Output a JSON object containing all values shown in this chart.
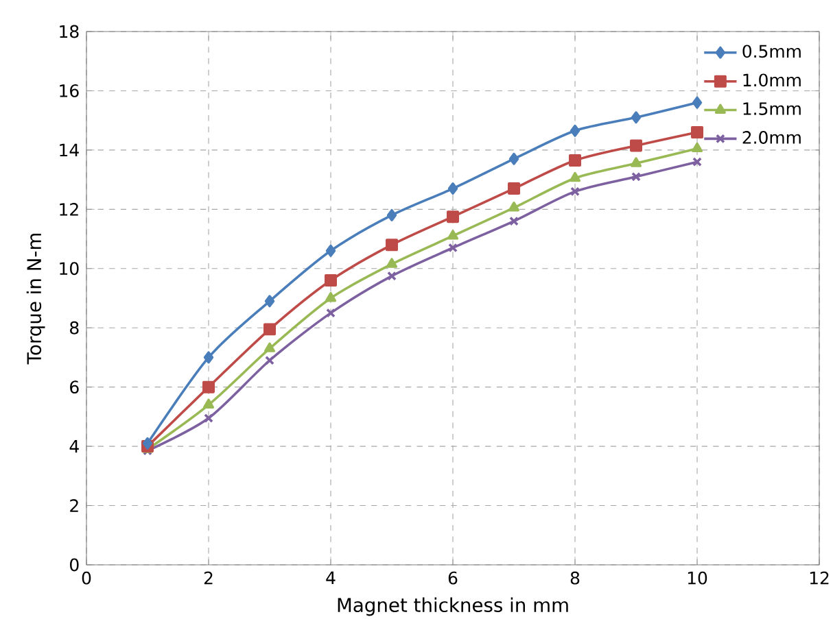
{
  "chart_data": {
    "type": "line",
    "xlabel": "Magnet thickness in mm",
    "ylabel": "Torque in N-m",
    "x": [
      1,
      2,
      3,
      4,
      5,
      6,
      7,
      8,
      9,
      10
    ],
    "xlim": [
      0,
      12
    ],
    "xticks": [
      0,
      2,
      4,
      6,
      8,
      10,
      12
    ],
    "ylim": [
      0,
      18
    ],
    "yticks": [
      0,
      2,
      4,
      6,
      8,
      10,
      12,
      14,
      16,
      18
    ],
    "grid": true,
    "legend": "top right",
    "line_style": "solid",
    "series": [
      {
        "name": "0.5mm",
        "color": "#4a7ebb",
        "marker": "diamond",
        "values": [
          4.1,
          7.0,
          8.9,
          10.6,
          11.8,
          12.7,
          13.7,
          14.65,
          15.1,
          15.6
        ]
      },
      {
        "name": "1.0mm",
        "color": "#be4b48",
        "marker": "square",
        "values": [
          4.0,
          6.0,
          7.95,
          9.6,
          10.8,
          11.75,
          12.7,
          13.65,
          14.15,
          14.6
        ]
      },
      {
        "name": "1.5mm",
        "color": "#98b954",
        "marker": "triangle",
        "values": [
          3.9,
          5.4,
          7.3,
          9.0,
          10.15,
          11.1,
          12.05,
          13.05,
          13.55,
          14.05
        ]
      },
      {
        "name": "2.0mm",
        "color": "#7d60a0",
        "marker": "cross",
        "values": [
          3.85,
          4.95,
          6.9,
          8.5,
          9.75,
          10.7,
          11.6,
          12.6,
          13.1,
          13.6
        ]
      }
    ]
  }
}
